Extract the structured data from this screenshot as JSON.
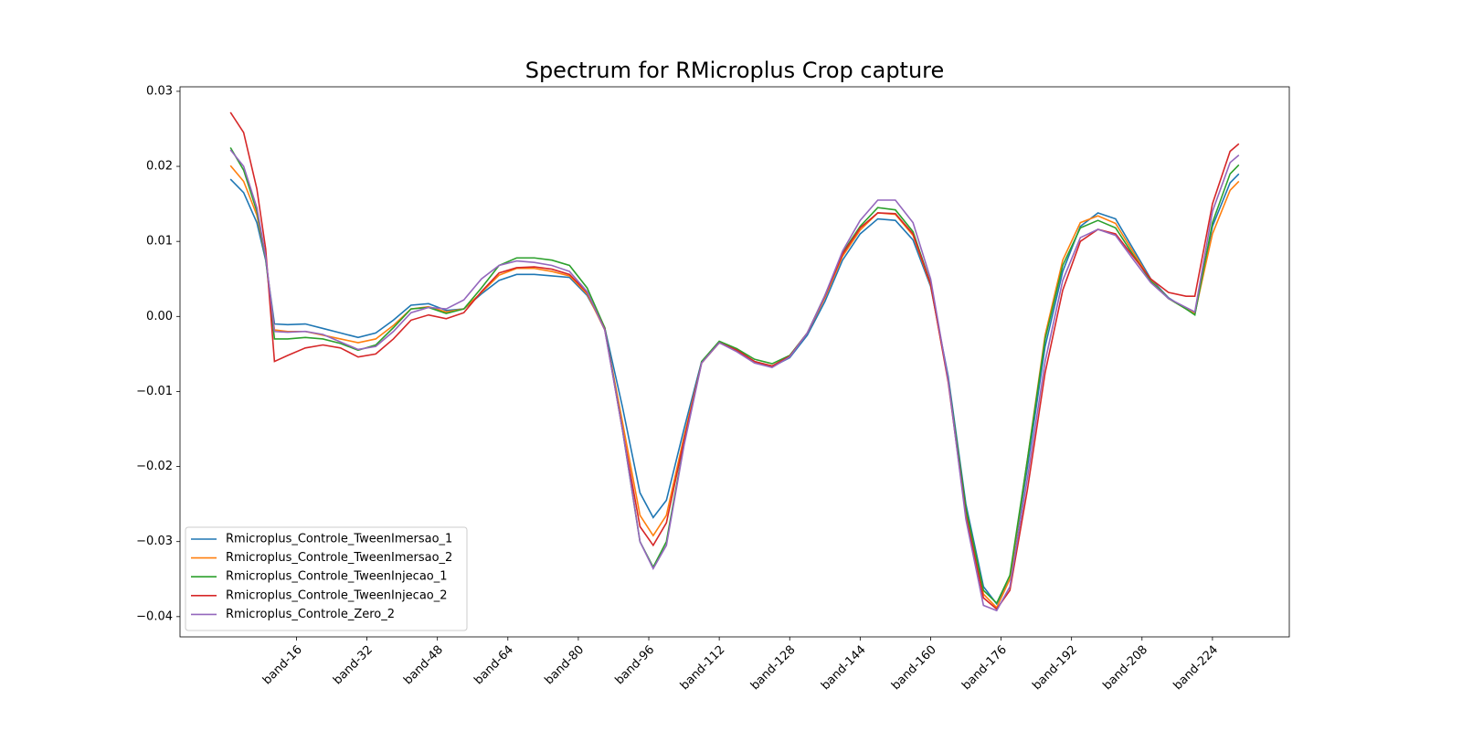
{
  "chart_data": {
    "type": "line",
    "title": "Spectrum for RMicroplus Crop capture",
    "x": [
      1,
      4,
      7,
      9,
      11,
      14,
      18,
      22,
      26,
      30,
      34,
      38,
      42,
      46,
      50,
      54,
      58,
      62,
      66,
      70,
      74,
      78,
      82,
      86,
      90,
      94,
      97,
      100,
      104,
      108,
      112,
      116,
      120,
      124,
      128,
      132,
      136,
      140,
      144,
      148,
      152,
      156,
      160,
      164,
      168,
      172,
      175,
      178,
      182,
      186,
      190,
      194,
      198,
      202,
      206,
      210,
      214,
      218,
      220,
      224,
      228,
      230
    ],
    "series": [
      {
        "name": "Rmicroplus_Controle_TweenImersao_1",
        "color": "#1f77b4",
        "values": [
          0.0183,
          0.0165,
          0.0125,
          0.0075,
          -0.001,
          -0.0011,
          -0.001,
          -0.0016,
          -0.0022,
          -0.0028,
          -0.0022,
          -0.0005,
          0.0015,
          0.0017,
          0.0008,
          0.001,
          0.003,
          0.0048,
          0.0056,
          0.0056,
          0.0054,
          0.0052,
          0.0028,
          -0.0015,
          -0.012,
          -0.0235,
          -0.0268,
          -0.0245,
          -0.015,
          -0.006,
          -0.0035,
          -0.0045,
          -0.006,
          -0.0067,
          -0.0055,
          -0.0025,
          0.002,
          0.0075,
          0.011,
          0.013,
          0.0128,
          0.0102,
          0.004,
          -0.008,
          -0.025,
          -0.036,
          -0.0383,
          -0.035,
          -0.02,
          -0.004,
          0.006,
          0.012,
          0.0138,
          0.013,
          0.009,
          0.005,
          0.0025,
          0.001,
          0.0003,
          0.012,
          0.0178,
          0.019
        ]
      },
      {
        "name": "Rmicroplus_Controle_TweenImersao_2",
        "color": "#ff7f0e",
        "values": [
          0.0201,
          0.018,
          0.0135,
          0.0078,
          -0.0018,
          -0.002,
          -0.002,
          -0.0025,
          -0.003,
          -0.0035,
          -0.003,
          -0.0012,
          0.001,
          0.0013,
          0.0006,
          0.001,
          0.0032,
          0.0055,
          0.0064,
          0.0064,
          0.006,
          0.0054,
          0.003,
          -0.0018,
          -0.014,
          -0.0265,
          -0.0292,
          -0.0265,
          -0.016,
          -0.0062,
          -0.0035,
          -0.0045,
          -0.006,
          -0.0066,
          -0.0053,
          -0.0022,
          0.0025,
          0.008,
          0.0115,
          0.0138,
          0.0136,
          0.0108,
          0.0042,
          -0.0085,
          -0.026,
          -0.037,
          -0.0388,
          -0.035,
          -0.019,
          -0.0025,
          0.0075,
          0.0125,
          0.0134,
          0.0124,
          0.0086,
          0.0048,
          0.0024,
          0.001,
          0.0004,
          0.011,
          0.0168,
          0.018
        ]
      },
      {
        "name": "Rmicroplus_Controle_TweenInjecao_1",
        "color": "#2ca02c",
        "values": [
          0.0225,
          0.0195,
          0.014,
          0.0078,
          -0.003,
          -0.003,
          -0.0028,
          -0.003,
          -0.0036,
          -0.0045,
          -0.0038,
          -0.0015,
          0.001,
          0.0012,
          0.0004,
          0.001,
          0.0038,
          0.0068,
          0.0078,
          0.0078,
          0.0075,
          0.0068,
          0.0038,
          -0.0015,
          -0.015,
          -0.03,
          -0.0334,
          -0.03,
          -0.017,
          -0.006,
          -0.0033,
          -0.0043,
          -0.0057,
          -0.0063,
          -0.0052,
          -0.0022,
          0.0028,
          0.0085,
          0.012,
          0.0145,
          0.0142,
          0.0113,
          0.0044,
          -0.0085,
          -0.0255,
          -0.0365,
          -0.0382,
          -0.0345,
          -0.019,
          -0.003,
          0.0068,
          0.0118,
          0.0128,
          0.0118,
          0.0082,
          0.0047,
          0.0024,
          0.001,
          0.0002,
          0.0125,
          0.019,
          0.0202
        ]
      },
      {
        "name": "Rmicroplus_Controle_TweenInjecao_2",
        "color": "#d62728",
        "values": [
          0.0272,
          0.0245,
          0.017,
          0.009,
          -0.006,
          -0.0052,
          -0.0042,
          -0.0038,
          -0.0042,
          -0.0054,
          -0.005,
          -0.003,
          -0.0005,
          0.0002,
          -0.0003,
          0.0005,
          0.0033,
          0.0058,
          0.0065,
          0.0066,
          0.0063,
          0.0056,
          0.0032,
          -0.0017,
          -0.015,
          -0.028,
          -0.0305,
          -0.0275,
          -0.0165,
          -0.0062,
          -0.0035,
          -0.0045,
          -0.006,
          -0.0066,
          -0.0053,
          -0.0022,
          0.0027,
          0.0083,
          0.0118,
          0.0138,
          0.0137,
          0.011,
          0.0043,
          -0.0088,
          -0.0265,
          -0.0375,
          -0.039,
          -0.0365,
          -0.023,
          -0.0075,
          0.0035,
          0.01,
          0.0116,
          0.011,
          0.008,
          0.005,
          0.0032,
          0.0027,
          0.0027,
          0.015,
          0.022,
          0.023
        ]
      },
      {
        "name": "Rmicroplus_Controle_Zero_2",
        "color": "#9467bd",
        "values": [
          0.0222,
          0.02,
          0.0145,
          0.008,
          -0.002,
          -0.0021,
          -0.002,
          -0.0024,
          -0.0034,
          -0.0044,
          -0.004,
          -0.002,
          0.0005,
          0.0012,
          0.001,
          0.0022,
          0.005,
          0.0068,
          0.0074,
          0.0072,
          0.0068,
          0.006,
          0.0033,
          -0.0018,
          -0.015,
          -0.03,
          -0.0336,
          -0.0305,
          -0.0172,
          -0.0062,
          -0.0035,
          -0.0047,
          -0.0062,
          -0.0068,
          -0.0054,
          -0.0022,
          0.0028,
          0.0087,
          0.0128,
          0.0155,
          0.0155,
          0.0125,
          0.005,
          -0.0085,
          -0.027,
          -0.0385,
          -0.0392,
          -0.036,
          -0.0215,
          -0.006,
          0.0048,
          0.0105,
          0.0116,
          0.0108,
          0.0076,
          0.0045,
          0.0024,
          0.0012,
          0.0006,
          0.014,
          0.0205,
          0.0215
        ]
      }
    ],
    "xlim": [
      -10.45,
      241.45
    ],
    "xticks": [
      {
        "value": 16,
        "label": "band-16"
      },
      {
        "value": 32,
        "label": "band-32"
      },
      {
        "value": 48,
        "label": "band-48"
      },
      {
        "value": 64,
        "label": "band-64"
      },
      {
        "value": 80,
        "label": "band-80"
      },
      {
        "value": 96,
        "label": "band-96"
      },
      {
        "value": 112,
        "label": "band-112"
      },
      {
        "value": 128,
        "label": "band-128"
      },
      {
        "value": 144,
        "label": "band-144"
      },
      {
        "value": 160,
        "label": "band-160"
      },
      {
        "value": 176,
        "label": "band-176"
      },
      {
        "value": 192,
        "label": "band-192"
      },
      {
        "value": 208,
        "label": "band-208"
      },
      {
        "value": 224,
        "label": "band-224"
      }
    ],
    "ylim": [
      -0.0427,
      0.0306
    ],
    "yticks": [
      0.03,
      0.02,
      0.01,
      {
        "value": 0,
        "label": "0.00"
      },
      {
        "value": -0.01,
        "label": "−0.01"
      },
      {
        "value": -0.02,
        "label": "−0.02"
      },
      {
        "value": -0.03,
        "label": "−0.03"
      },
      {
        "value": -0.04,
        "label": "−0.04"
      }
    ],
    "legend": "lower left"
  }
}
